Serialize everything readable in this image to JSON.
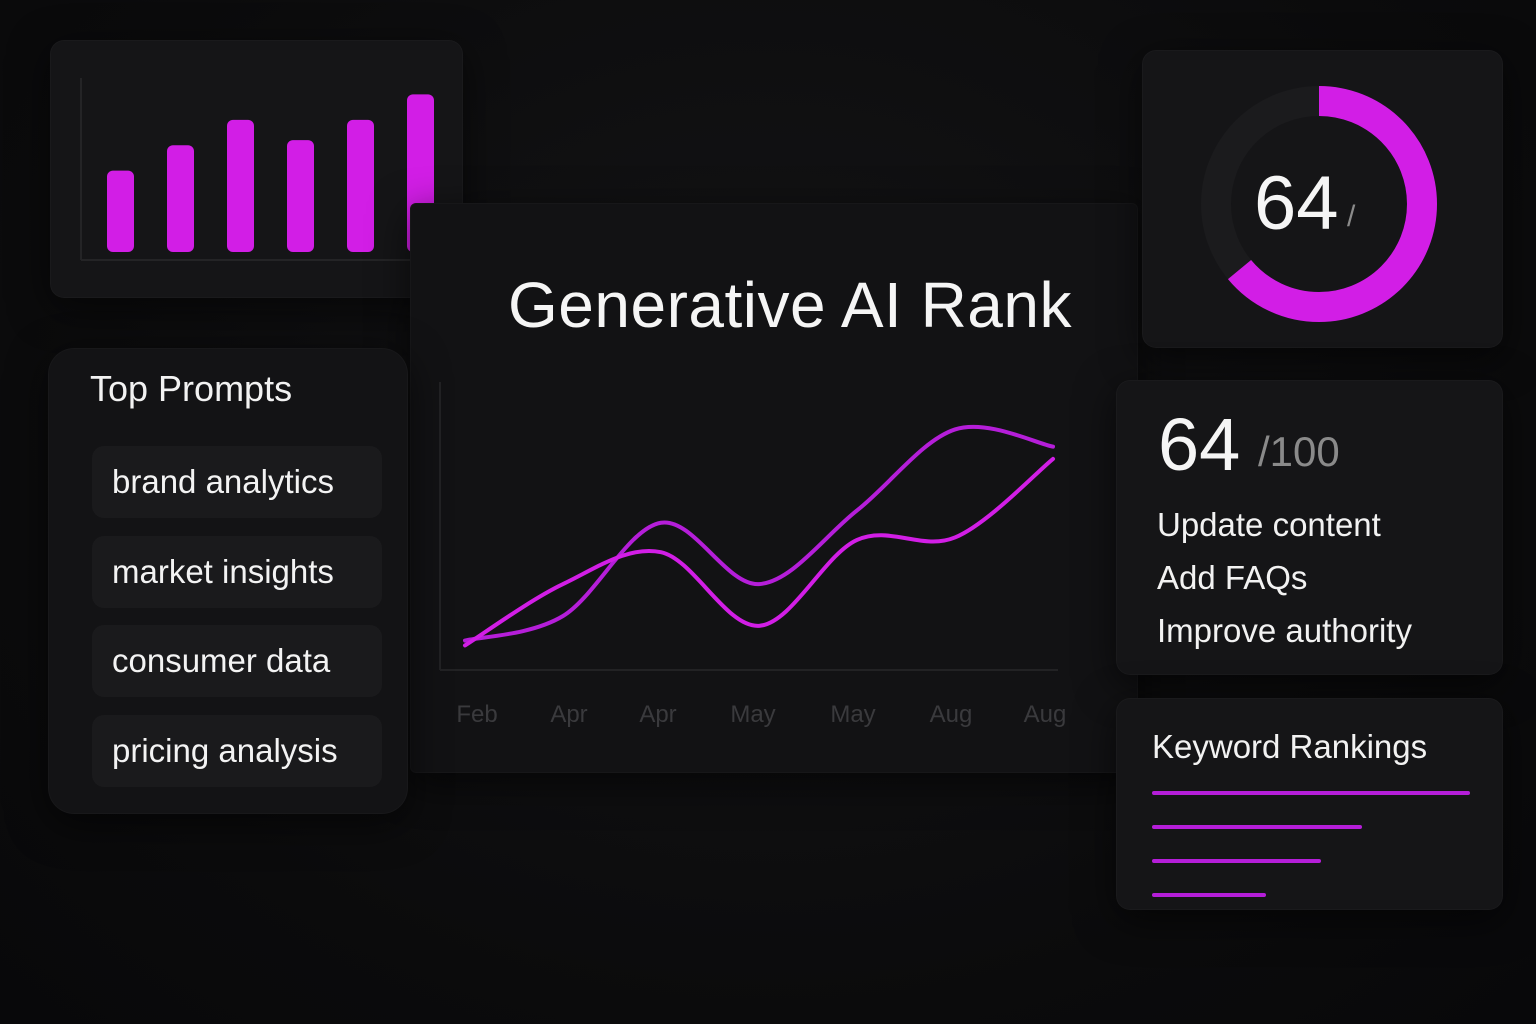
{
  "colors": {
    "accent": "#d21ee6",
    "accent_line_2": "#b51ed9",
    "background": "#0b0b0c",
    "card": "#151517",
    "muted_text": "#8a8a8a"
  },
  "bar_chart": {
    "chart_data": {
      "type": "bar",
      "categories": [
        "",
        "",
        "",
        "",
        "",
        ""
      ],
      "values": [
        3.2,
        4.2,
        5.2,
        4.4,
        5.2,
        6.2
      ],
      "ylim": [
        0,
        7
      ],
      "grid": false,
      "title": "",
      "xlabel": "",
      "ylabel": ""
    }
  },
  "main": {
    "title": "Generative AI Rank"
  },
  "line_chart": {
    "chart_data": {
      "type": "line",
      "categories": [
        "Feb",
        "Apr",
        "Apr",
        "May",
        "May",
        "Aug",
        "Aug"
      ],
      "series": [
        {
          "values": [
            12,
            22,
            60,
            35,
            65,
            98,
            91
          ],
          "color": "#b51ed9"
        },
        {
          "values": [
            10,
            35,
            48,
            18,
            53,
            54,
            86
          ],
          "color": "#d21ee6"
        }
      ],
      "ylim": [
        0,
        110
      ],
      "grid": false,
      "title": "",
      "xlabel": "",
      "ylabel": ""
    }
  },
  "prompts": {
    "title": "Top Prompts",
    "items": [
      "brand analytics",
      "market insights",
      "consumer data",
      "pricing analysis"
    ]
  },
  "gauge": {
    "value": "64",
    "slash": "/",
    "progress": 0.64
  },
  "score": {
    "value": "64",
    "max": "/100",
    "actions": [
      "Update content",
      "Add FAQs",
      "Improve authority"
    ]
  },
  "keywords": {
    "title": "Keyword Rankings",
    "bar_values": [
      1.0,
      0.66,
      0.53,
      0.36
    ]
  }
}
